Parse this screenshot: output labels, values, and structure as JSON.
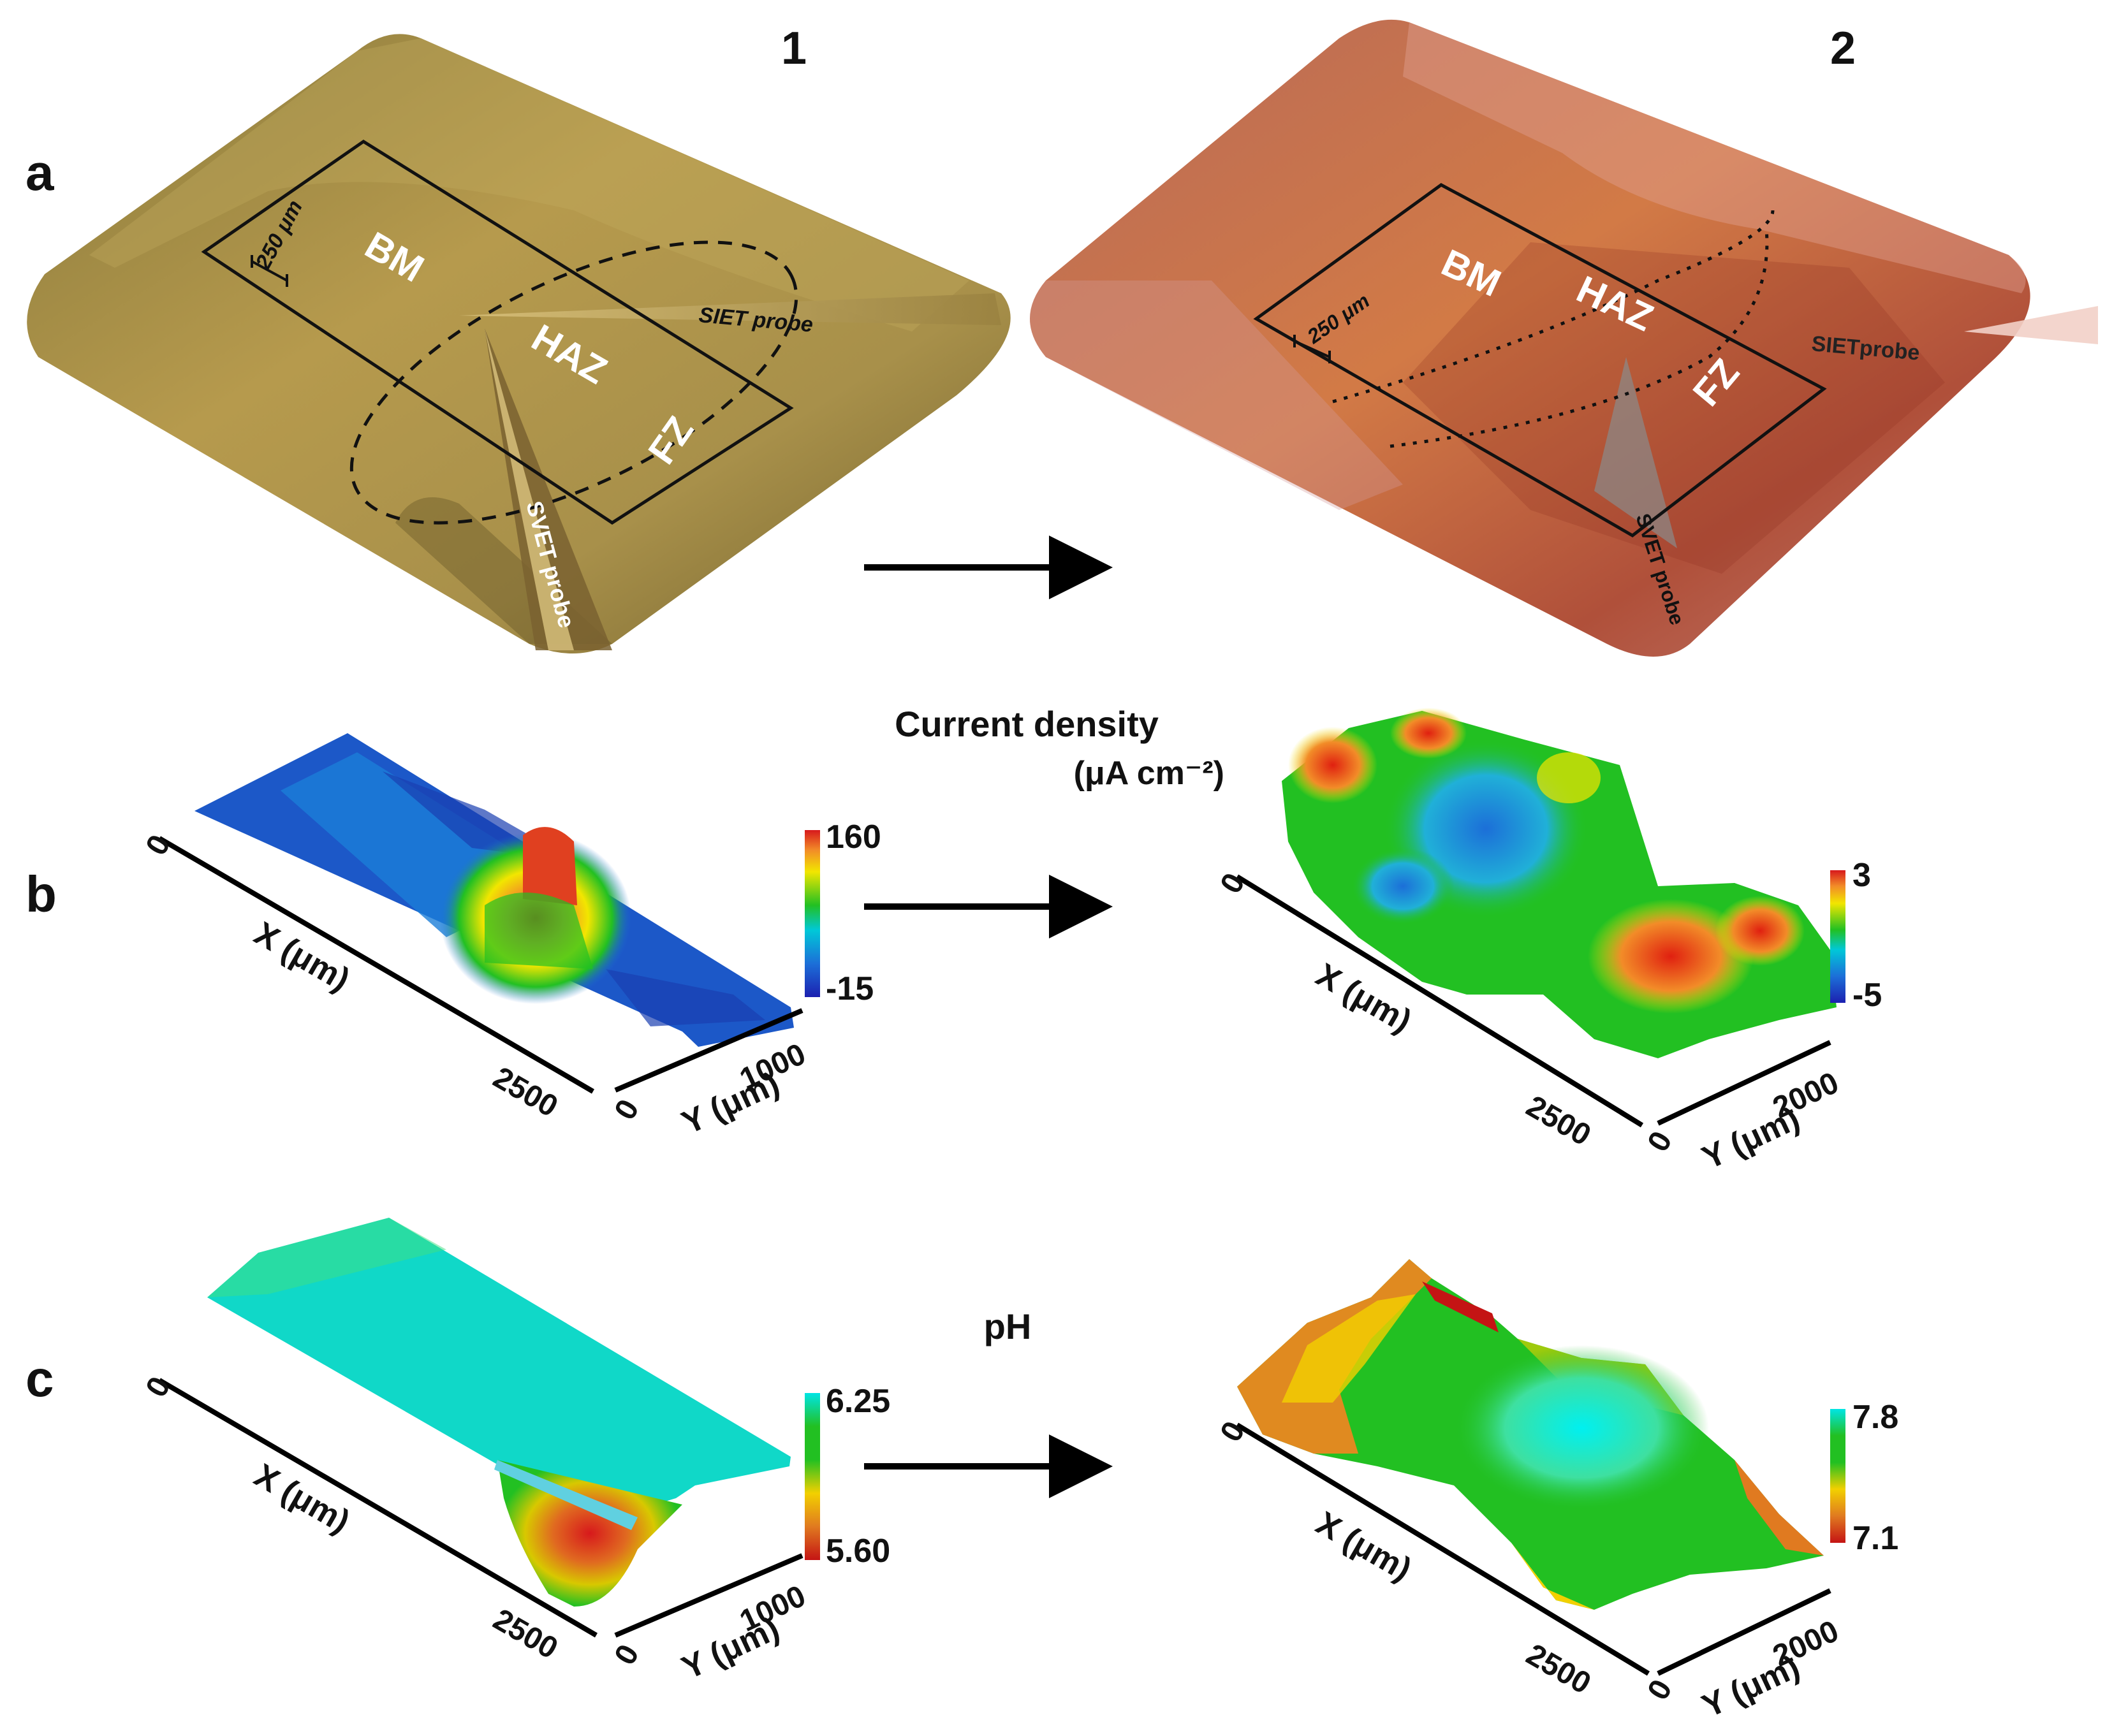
{
  "columns": {
    "c1": "1",
    "c2": "2"
  },
  "panels": {
    "a": "a",
    "b": "b",
    "c": "c"
  },
  "photo1": {
    "regions": {
      "bm": "BM",
      "haz": "HAZ",
      "fz": "FZ"
    },
    "scale": "250 μm",
    "siet_probe": "SIET probe",
    "svet_probe": "SVET probe"
  },
  "photo2": {
    "regions": {
      "bm": "BM",
      "haz": "HAZ",
      "fz": "FZ"
    },
    "scale": "250 μm",
    "siet_probe": "SIETprobe",
    "svet_probe": "SVET probe"
  },
  "current_density": {
    "title": "Current density",
    "unit": "(μA cm⁻²)"
  },
  "ph_title": "pH",
  "plots": {
    "b1": {
      "x_label": "X (μm)",
      "y_label": "Y (μm)",
      "x0": "0",
      "x_end": "2500",
      "y0": "0",
      "y_end": "1000",
      "cb_max": "160",
      "cb_min": "-15"
    },
    "b2": {
      "x_label": "X (μm)",
      "y_label": "Y (μm)",
      "x0": "0",
      "x_end": "2500",
      "y0": "0",
      "y_end": "2000",
      "cb_max": "3",
      "cb_min": "-5"
    },
    "c1": {
      "x_label": "X (μm)",
      "y_label": "Y (μm)",
      "x0": "0",
      "x_end": "2500",
      "y0": "0",
      "y_end": "1000",
      "cb_max": "6.25",
      "cb_min": "5.60"
    },
    "c2": {
      "x_label": "X (μm)",
      "y_label": "Y (μm)",
      "x0": "0",
      "x_end": "2500",
      "y0": "0",
      "y_end": "2000",
      "cb_max": "7.8",
      "cb_min": "7.1"
    }
  },
  "colors": {
    "jet_red": "#d7191c",
    "jet_orange": "#f28c28",
    "jet_yellow": "#f2e600",
    "jet_green": "#22c022",
    "jet_cyan": "#00e5e5",
    "jet_blue": "#1c3fc8",
    "photo1": "#b69a4d",
    "photo2": "#c8704a"
  }
}
